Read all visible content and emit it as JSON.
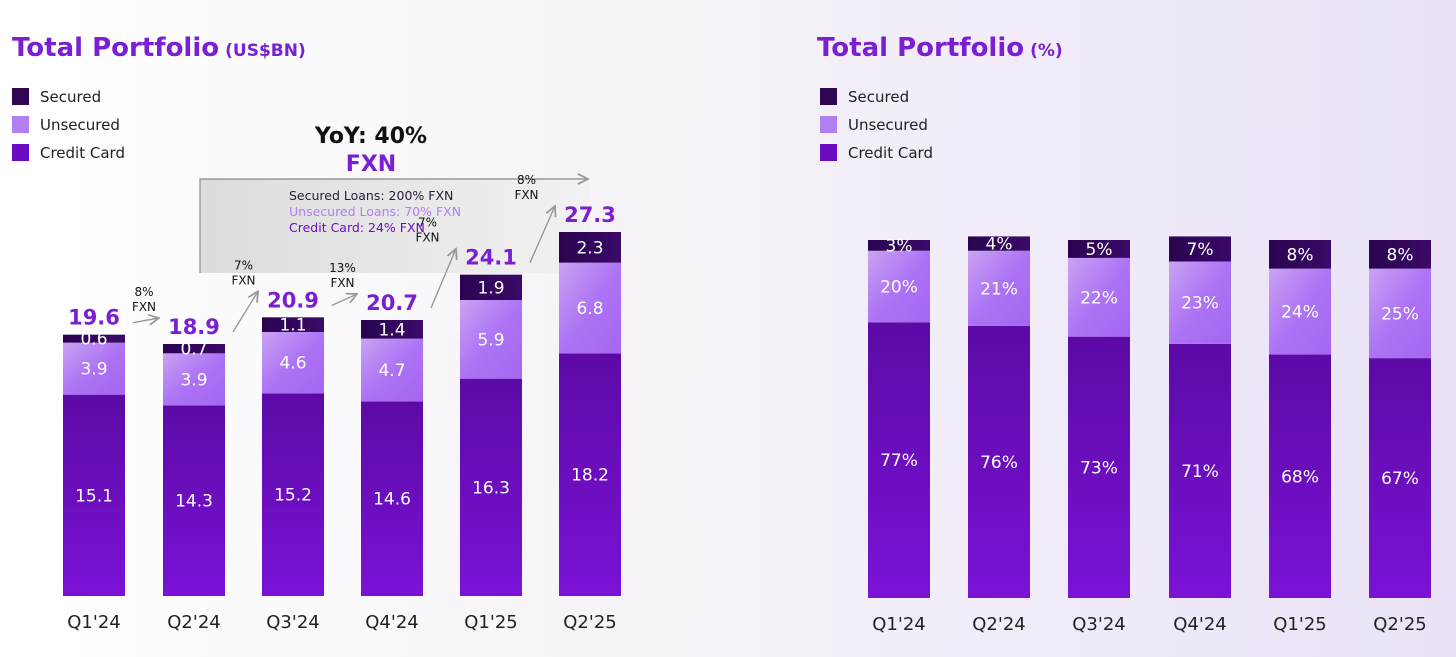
{
  "colors": {
    "secured": "#2e0654",
    "unsecured": "#b27ff2",
    "credit_card": "#6c0cc2",
    "accent": "#7a1fd1"
  },
  "chart_data": [
    {
      "type": "bar",
      "stacked": true,
      "title": "Total Portfolio",
      "unit": "(US$BN)",
      "categories": [
        "Q1'24",
        "Q2'24",
        "Q3'24",
        "Q4'24",
        "Q1'25",
        "Q2'25"
      ],
      "series": [
        {
          "name": "Credit Card",
          "values": [
            15.1,
            14.3,
            15.2,
            14.6,
            16.3,
            18.2
          ]
        },
        {
          "name": "Unsecured",
          "values": [
            3.9,
            3.9,
            4.6,
            4.7,
            5.9,
            6.8
          ]
        },
        {
          "name": "Secured",
          "values": [
            0.6,
            0.7,
            1.1,
            1.4,
            1.9,
            2.3
          ]
        }
      ],
      "totals": [
        "19.6",
        "18.9",
        "20.9",
        "20.7",
        "24.1",
        "27.3"
      ],
      "qoq_growth": [
        {
          "pct": "8%",
          "label": "FXN"
        },
        {
          "pct": "7%",
          "label": "FXN"
        },
        {
          "pct": "13%",
          "label": "FXN"
        },
        {
          "pct": "7%",
          "label": "FXN"
        },
        {
          "pct": "8%",
          "label": "FXN"
        }
      ],
      "legend": [
        "Secured",
        "Unsecured",
        "Credit Card"
      ],
      "legend_position": "top-left",
      "annotation": {
        "yoy": "YoY: 40%",
        "yoy_sub": "FXN",
        "lines": [
          "Secured Loans: 200% FXN",
          "Unsecured Loans: 70% FXN",
          "Credit Card: 24% FXN"
        ]
      },
      "ylim": [
        0,
        30
      ]
    },
    {
      "type": "bar",
      "stacked": true,
      "title": "Total Portfolio",
      "unit": "(%)",
      "categories": [
        "Q1'24",
        "Q2'24",
        "Q3'24",
        "Q4'24",
        "Q1'25",
        "Q2'25"
      ],
      "series": [
        {
          "name": "Credit Card",
          "values": [
            77,
            76,
            73,
            71,
            68,
            67
          ]
        },
        {
          "name": "Unsecured",
          "values": [
            20,
            21,
            22,
            23,
            24,
            25
          ]
        },
        {
          "name": "Secured",
          "values": [
            3,
            4,
            5,
            7,
            8,
            8
          ]
        }
      ],
      "legend": [
        "Secured",
        "Unsecured",
        "Credit Card"
      ],
      "legend_position": "top-left",
      "ylim": [
        0,
        100
      ]
    }
  ]
}
